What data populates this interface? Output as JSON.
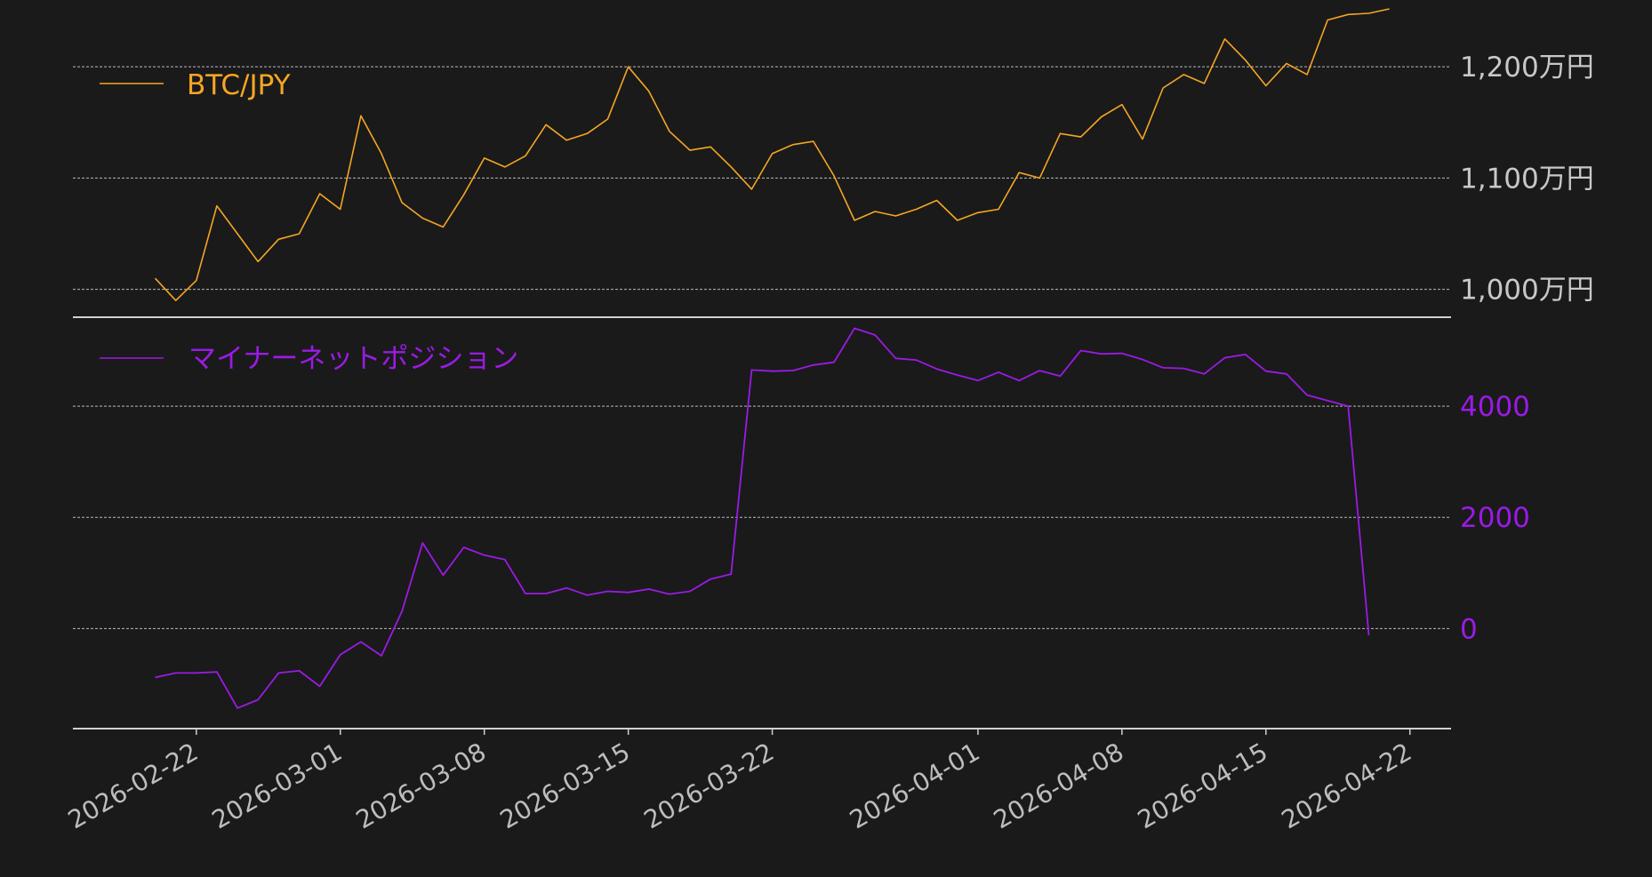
{
  "colors": {
    "background": "#1a1a1a",
    "price": "#f5a623",
    "position": "#9b1ae6",
    "price_ticks": "#c8c8c8",
    "grid": "#d8d8d8"
  },
  "chart_data": [
    {
      "type": "line",
      "legend": {
        "label": "BTC/JPY",
        "placement": "top-left"
      },
      "y_ticks": [
        {
          "value": 10000000,
          "label": "1,000万円"
        },
        {
          "value": 11000000,
          "label": "1,100万円"
        },
        {
          "value": 12000000,
          "label": "1,200万円"
        }
      ],
      "ylim": [
        9750000,
        12600000
      ],
      "grid": true,
      "series": [
        {
          "name": "BTC/JPY",
          "x": [
            "2026-02-20",
            "2026-02-21",
            "2026-02-22",
            "2026-02-23",
            "2026-02-24",
            "2026-02-25",
            "2026-02-26",
            "2026-02-27",
            "2026-02-28",
            "2026-03-01",
            "2026-03-02",
            "2026-03-03",
            "2026-03-04",
            "2026-03-05",
            "2026-03-06",
            "2026-03-07",
            "2026-03-08",
            "2026-03-09",
            "2026-03-10",
            "2026-03-11",
            "2026-03-12",
            "2026-03-13",
            "2026-03-14",
            "2026-03-15",
            "2026-03-16",
            "2026-03-17",
            "2026-03-18",
            "2026-03-19",
            "2026-03-20",
            "2026-03-21",
            "2026-03-22",
            "2026-03-23",
            "2026-03-24",
            "2026-03-25",
            "2026-03-26",
            "2026-03-27",
            "2026-03-28",
            "2026-03-29",
            "2026-03-30",
            "2026-03-31",
            "2026-04-01",
            "2026-04-02",
            "2026-04-03",
            "2026-04-04",
            "2026-04-05",
            "2026-04-06",
            "2026-04-07",
            "2026-04-08",
            "2026-04-09",
            "2026-04-10",
            "2026-04-11",
            "2026-04-12",
            "2026-04-13",
            "2026-04-14",
            "2026-04-15",
            "2026-04-16",
            "2026-04-17",
            "2026-04-18",
            "2026-04-19",
            "2026-04-20",
            "2026-04-21"
          ],
          "values": [
            10100000,
            9900000,
            10080000,
            10750000,
            10500000,
            10250000,
            10450000,
            10500000,
            10860000,
            10720000,
            11560000,
            11220000,
            10780000,
            10640000,
            10560000,
            10850000,
            11180000,
            11100000,
            11200000,
            11480000,
            11340000,
            11400000,
            11530000,
            12000000,
            11780000,
            11420000,
            11250000,
            11280000,
            11100000,
            10900000,
            11220000,
            11300000,
            11330000,
            11020000,
            10620000,
            10700000,
            10660000,
            10720000,
            10800000,
            10620000,
            10690000,
            10720000,
            11050000,
            11000000,
            11400000,
            11370000,
            11550000,
            11660000,
            11350000,
            11810000,
            11930000,
            11850000,
            12250000,
            12060000,
            11830000,
            12030000,
            11930000,
            12420000,
            12470000,
            12480000,
            12520000
          ]
        }
      ]
    },
    {
      "type": "line",
      "legend": {
        "label": "マイナーネットポジション",
        "placement": "top-left"
      },
      "y_ticks": [
        {
          "value": 0,
          "label": "0"
        },
        {
          "value": 2000,
          "label": "2000"
        },
        {
          "value": 4000,
          "label": "4000"
        }
      ],
      "ylim": [
        -1800,
        5600
      ],
      "grid": true,
      "series": [
        {
          "name": "マイナーネットポジション",
          "x": [
            "2026-02-20",
            "2026-02-21",
            "2026-02-22",
            "2026-02-23",
            "2026-02-24",
            "2026-02-25",
            "2026-02-26",
            "2026-02-27",
            "2026-02-28",
            "2026-03-01",
            "2026-03-02",
            "2026-03-03",
            "2026-03-04",
            "2026-03-05",
            "2026-03-06",
            "2026-03-07",
            "2026-03-08",
            "2026-03-09",
            "2026-03-10",
            "2026-03-11",
            "2026-03-12",
            "2026-03-13",
            "2026-03-14",
            "2026-03-15",
            "2026-03-16",
            "2026-03-17",
            "2026-03-18",
            "2026-03-19",
            "2026-03-20",
            "2026-03-21",
            "2026-03-22",
            "2026-03-23",
            "2026-03-24",
            "2026-03-25",
            "2026-03-26",
            "2026-03-27",
            "2026-03-28",
            "2026-03-29",
            "2026-03-30",
            "2026-03-31",
            "2026-04-01",
            "2026-04-02",
            "2026-04-03",
            "2026-04-04",
            "2026-04-05",
            "2026-04-06",
            "2026-04-07",
            "2026-04-08",
            "2026-04-09",
            "2026-04-10",
            "2026-04-11",
            "2026-04-12",
            "2026-04-13",
            "2026-04-14",
            "2026-04-15",
            "2026-04-16",
            "2026-04-17",
            "2026-04-18",
            "2026-04-19",
            "2026-04-20"
          ],
          "values": [
            -880,
            -800,
            -800,
            -780,
            -1430,
            -1280,
            -800,
            -760,
            -1040,
            -470,
            -240,
            -490,
            310,
            1540,
            960,
            1460,
            1320,
            1240,
            630,
            630,
            730,
            600,
            670,
            650,
            710,
            620,
            670,
            890,
            980,
            4650,
            4630,
            4640,
            4740,
            4790,
            5400,
            5280,
            4860,
            4830,
            4670,
            4560,
            4460,
            4610,
            4460,
            4640,
            4540,
            5000,
            4940,
            4950,
            4840,
            4690,
            4680,
            4580,
            4870,
            4930,
            4630,
            4580,
            4200,
            4100,
            4000,
            -120
          ]
        }
      ]
    }
  ],
  "x_axis": {
    "ticks": [
      {
        "value": "2026-02-22",
        "label": "2026-02-22"
      },
      {
        "value": "2026-03-01",
        "label": "2026-03-01"
      },
      {
        "value": "2026-03-08",
        "label": "2026-03-08"
      },
      {
        "value": "2026-03-15",
        "label": "2026-03-15"
      },
      {
        "value": "2026-03-22",
        "label": "2026-03-22"
      },
      {
        "value": "2026-04-01",
        "label": "2026-04-01"
      },
      {
        "value": "2026-04-08",
        "label": "2026-04-08"
      },
      {
        "value": "2026-04-15",
        "label": "2026-04-15"
      },
      {
        "value": "2026-04-22",
        "label": "2026-04-22"
      }
    ]
  }
}
